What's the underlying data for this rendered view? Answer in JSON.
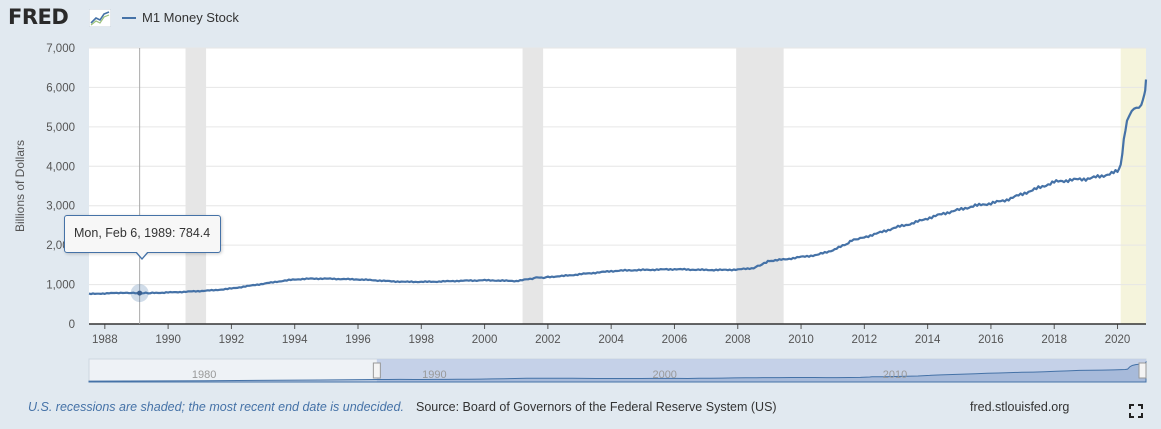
{
  "header": {
    "logo_text": "FRED",
    "legend_label": "M1 Money Stock",
    "series_color": "#4572a7"
  },
  "chart_data": {
    "type": "line",
    "title": "",
    "xlabel": "",
    "ylabel": "Billions of Dollars",
    "xlim": [
      1987.5,
      2020.9
    ],
    "ylim": [
      0,
      7000
    ],
    "y_ticks": [
      "0",
      "1,000",
      "2,000",
      "3,000",
      "4,000",
      "5,000",
      "6,000",
      "7,000"
    ],
    "x_ticks": [
      "1988",
      "1990",
      "1992",
      "1994",
      "1996",
      "1998",
      "2000",
      "2002",
      "2004",
      "2006",
      "2008",
      "2010",
      "2012",
      "2014",
      "2016",
      "2018",
      "2020"
    ],
    "grid": true,
    "recessions": [
      [
        1990.55,
        1991.2
      ],
      [
        2001.2,
        2001.85
      ],
      [
        2007.95,
        2009.45
      ],
      [
        2020.1,
        2020.9
      ]
    ],
    "series": [
      {
        "name": "M1 Money Stock",
        "x": [
          1987.5,
          1988.0,
          1988.5,
          1989.1,
          1989.5,
          1990.0,
          1990.5,
          1991.0,
          1991.5,
          1992.0,
          1992.5,
          1993.0,
          1993.5,
          1994.0,
          1994.5,
          1995.0,
          1995.5,
          1996.0,
          1996.5,
          1997.0,
          1997.5,
          1998.0,
          1998.5,
          1999.0,
          1999.5,
          2000.0,
          2000.5,
          2001.0,
          2001.5,
          2001.7,
          2001.8,
          2002.0,
          2002.5,
          2003.0,
          2003.5,
          2004.0,
          2004.5,
          2005.0,
          2005.5,
          2006.0,
          2006.5,
          2007.0,
          2007.5,
          2008.0,
          2008.5,
          2008.9,
          2009.0,
          2009.5,
          2010.0,
          2010.5,
          2011.0,
          2011.5,
          2011.6,
          2012.0,
          2012.5,
          2013.0,
          2013.5,
          2014.0,
          2014.5,
          2015.0,
          2015.5,
          2016.0,
          2016.5,
          2017.0,
          2017.5,
          2018.0,
          2018.5,
          2019.0,
          2019.5,
          2020.0,
          2020.1,
          2020.2,
          2020.3,
          2020.45,
          2020.6,
          2020.75,
          2020.85,
          2020.9
        ],
        "y": [
          760,
          775,
          790,
          784,
          785,
          800,
          815,
          835,
          860,
          900,
          960,
          1020,
          1080,
          1130,
          1150,
          1150,
          1140,
          1130,
          1110,
          1085,
          1070,
          1070,
          1075,
          1090,
          1100,
          1110,
          1100,
          1090,
          1150,
          1190,
          1170,
          1190,
          1220,
          1260,
          1300,
          1340,
          1360,
          1370,
          1380,
          1390,
          1380,
          1370,
          1370,
          1380,
          1420,
          1560,
          1600,
          1640,
          1700,
          1750,
          1870,
          2050,
          2120,
          2200,
          2320,
          2450,
          2550,
          2680,
          2800,
          2900,
          3000,
          3060,
          3150,
          3300,
          3450,
          3600,
          3650,
          3680,
          3750,
          3870,
          4000,
          4700,
          5100,
          5400,
          5500,
          5600,
          5800,
          6200
        ]
      }
    ],
    "tooltip": {
      "date": "Mon, Feb 6, 1989:",
      "value": "784.4",
      "x": 1989.1,
      "y": 784.4
    },
    "navigator": {
      "xlim": [
        1975,
        2020.9
      ],
      "labels": [
        "1980",
        "1990",
        "2000",
        "2010"
      ],
      "label_x": [
        1980,
        1990,
        2000,
        2010
      ],
      "range": [
        1987.5,
        2020.9
      ]
    }
  },
  "footer": {
    "note": "U.S. recessions are shaded; the most recent end date is undecided.",
    "source": "Source: Board of Governors of the Federal Reserve System (US)",
    "site": "fred.stlouisfed.org"
  }
}
